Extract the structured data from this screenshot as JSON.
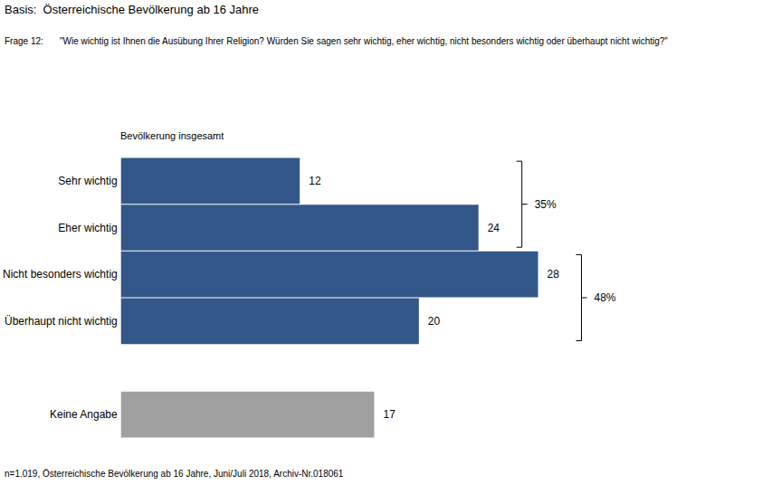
{
  "chart_data": {
    "type": "bar",
    "orientation": "horizontal",
    "title": "Basis:  Österreichische Bevölkerung ab 16 Jahre",
    "question": {
      "label": "Frage 12:",
      "text": "\"Wie wichtig ist Ihnen die Ausübung Ihrer Religion? Würden Sie sagen sehr wichtig, eher wichtig, nicht besonders wichtig oder überhaupt nicht wichtig?\""
    },
    "subtitle": "Bevölkerung insgesamt",
    "note": "n=1.019, Österreichische Bevölkerung ab 16 Jahre, Juni/Juli 2018, Archiv-Nr.018061",
    "categories": [
      "Sehr wichtig",
      "Eher wichtig",
      "Nicht besonders wichtig",
      "Überhaupt nicht wichtig",
      null,
      "Keine Angabe"
    ],
    "values": [
      12,
      24,
      28,
      20,
      null,
      17
    ],
    "colors": [
      "#34578a",
      "#34578a",
      "#34578a",
      "#34578a",
      null,
      "#a0a0a0"
    ],
    "xlim": [
      0,
      40
    ],
    "tick_labels": "y",
    "grid": false,
    "data_labels": true,
    "groups": [
      {
        "from": 0,
        "to": 1,
        "value": 35,
        "label": "35%"
      },
      {
        "from": 2,
        "to": 3,
        "value": 48,
        "label": "48%"
      }
    ]
  }
}
